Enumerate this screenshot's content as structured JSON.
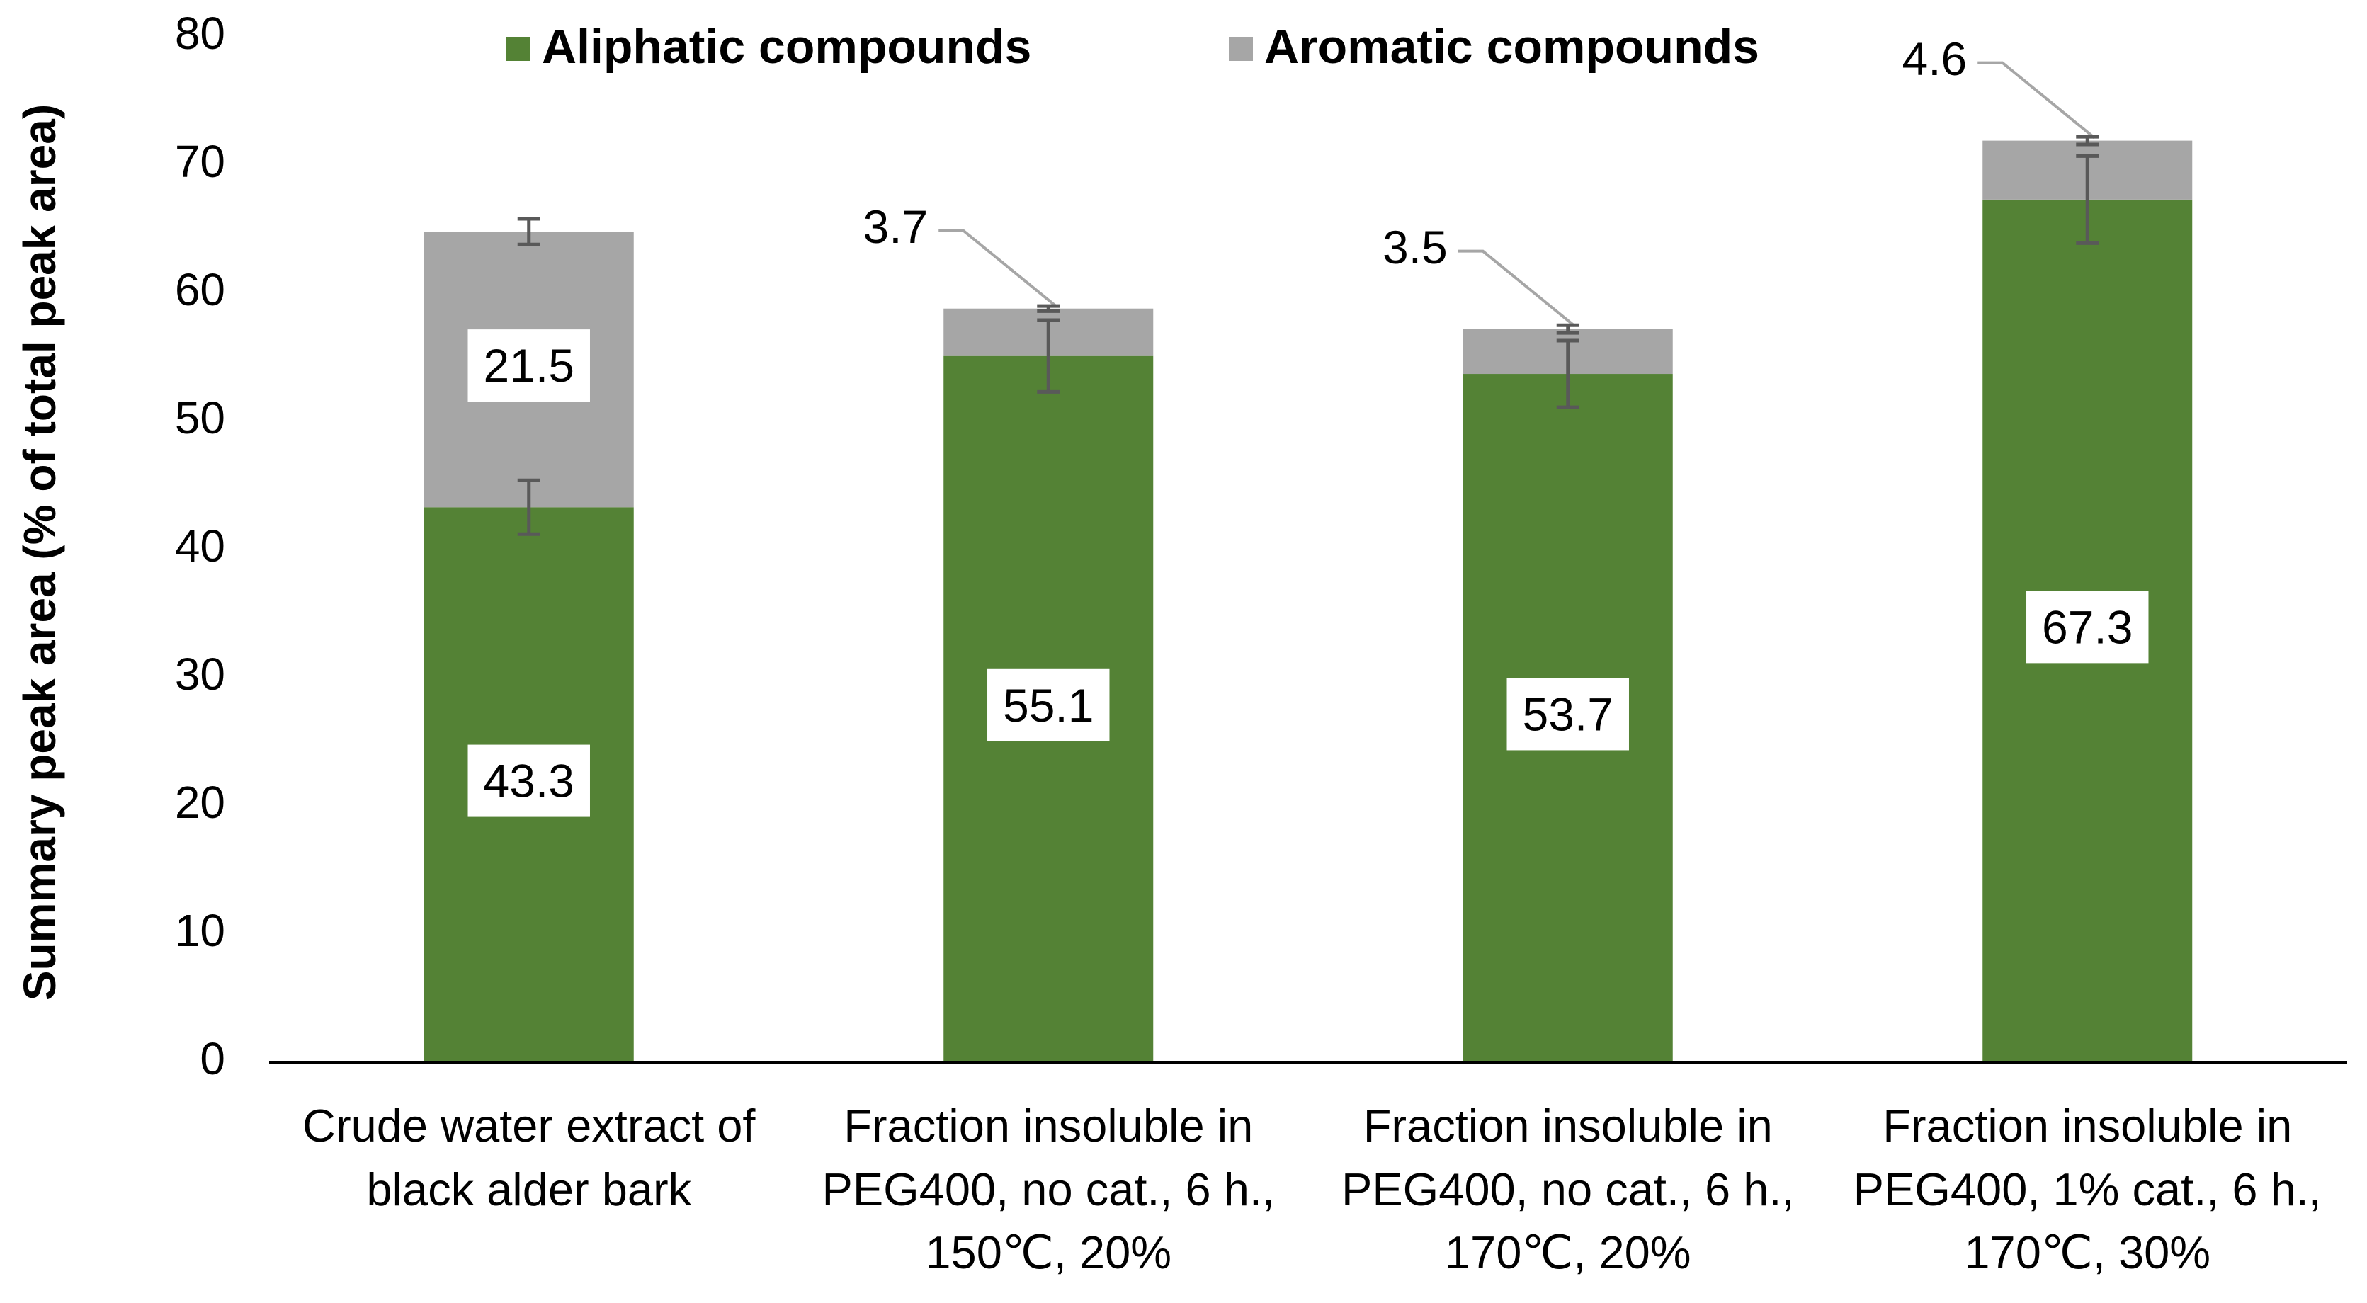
{
  "chart_data": {
    "type": "stacked_bar",
    "y_label": "Summary peak area (% of total peak area)",
    "categories": [
      "Crude water extract of black alder bark",
      "Fraction insoluble in PEG400, no cat., 6 h., 150℃, 20%",
      "Fraction insoluble in PEG400, no cat., 6 h., 170℃, 20%",
      "Fraction insoluble in PEG400, 1% cat., 6 h., 170℃, 30%"
    ],
    "series": [
      {
        "name": "Aliphatic compounds",
        "color": "#548235",
        "values": [
          43.3,
          55.1,
          53.7,
          67.3
        ],
        "errors": [
          2.1,
          2.8,
          2.6,
          3.4
        ]
      },
      {
        "name": "Aromatic compounds",
        "color": "#a6a6a6",
        "values": [
          21.5,
          3.7,
          3.5,
          4.6
        ],
        "errors": [
          1.0,
          0.2,
          0.3,
          0.3
        ]
      }
    ],
    "ylim": [
      0,
      80
    ],
    "yticks": [
      0,
      10,
      20,
      30,
      40,
      50,
      60,
      70,
      80
    ],
    "grid": false,
    "legend": "top"
  }
}
